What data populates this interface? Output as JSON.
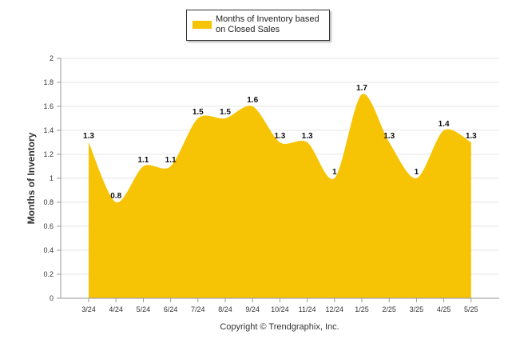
{
  "chart_data": {
    "type": "area",
    "categories": [
      "3/24",
      "4/24",
      "5/24",
      "6/24",
      "7/24",
      "8/24",
      "9/24",
      "10/24",
      "11/24",
      "12/24",
      "1/25",
      "2/25",
      "3/25",
      "4/25",
      "5/25"
    ],
    "series": [
      {
        "name": "Months of Inventory based on Closed Sales",
        "values": [
          1.3,
          0.8,
          1.1,
          1.1,
          1.5,
          1.5,
          1.6,
          1.3,
          1.3,
          1,
          1.7,
          1.3,
          1,
          1.4,
          1.3
        ],
        "color": "#F7C305"
      }
    ],
    "data_labels": [
      "1.3",
      "0.8",
      "1.1",
      "1.1",
      "1.5",
      "1.5",
      "1.6",
      "1.3",
      "1.3",
      "1",
      "1.7",
      "1.3",
      "1",
      "1.4",
      "1.3"
    ],
    "ylabel": "Months of Inventory",
    "xlabel": "",
    "ylim": [
      0,
      2
    ],
    "yticks": [
      "0",
      "0.2",
      "0.4",
      "0.6",
      "0.8",
      "1",
      "1.2",
      "1.4",
      "1.6",
      "1.8",
      "2"
    ],
    "grid": true,
    "legend_position": "top-center",
    "legend_lines": [
      "Months of Inventory based",
      "on Closed Sales"
    ],
    "credit": "Copyright © Trendgraphix, Inc."
  }
}
